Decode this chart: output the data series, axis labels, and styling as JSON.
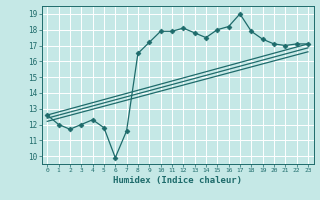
{
  "title": "",
  "xlabel": "Humidex (Indice chaleur)",
  "ylabel": "",
  "xlim": [
    -0.5,
    23.5
  ],
  "ylim": [
    9.5,
    19.5
  ],
  "xticks": [
    0,
    1,
    2,
    3,
    4,
    5,
    6,
    7,
    8,
    9,
    10,
    11,
    12,
    13,
    14,
    15,
    16,
    17,
    18,
    19,
    20,
    21,
    22,
    23
  ],
  "yticks": [
    10,
    11,
    12,
    13,
    14,
    15,
    16,
    17,
    18,
    19
  ],
  "bg_color": "#c5e8e6",
  "line_color": "#1e6b6b",
  "grid_color": "#ffffff",
  "series": [
    {
      "x": [
        0,
        1,
        2,
        3,
        4,
        5,
        6,
        7,
        8,
        9,
        10,
        11,
        12,
        13,
        14,
        15,
        16,
        17,
        18,
        19,
        20,
        21,
        22,
        23
      ],
      "y": [
        12.6,
        12.0,
        11.7,
        12.0,
        12.3,
        11.8,
        9.9,
        11.6,
        16.5,
        17.2,
        17.9,
        17.9,
        18.1,
        17.8,
        17.5,
        18.0,
        18.2,
        19.0,
        17.9,
        17.4,
        17.1,
        17.0,
        17.1,
        17.1
      ],
      "marker": "D",
      "marker_size": 2.5
    },
    {
      "x": [
        0,
        23
      ],
      "y": [
        12.6,
        17.1
      ],
      "marker": null
    },
    {
      "x": [
        0,
        23
      ],
      "y": [
        12.4,
        16.85
      ],
      "marker": null
    },
    {
      "x": [
        0,
        23
      ],
      "y": [
        12.2,
        16.6
      ],
      "marker": null
    }
  ]
}
